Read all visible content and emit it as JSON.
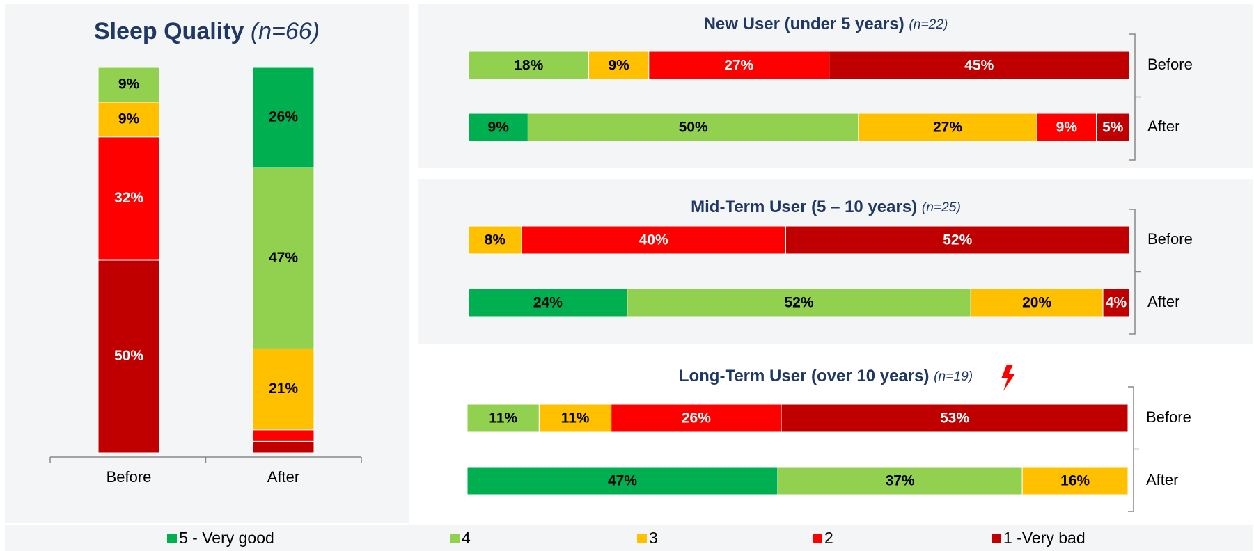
{
  "chart_data": [
    {
      "type": "bar",
      "orientation": "vertical",
      "stacked": true,
      "title": "Sleep Quality",
      "subtitle": "(n=66)",
      "categories": [
        "Before",
        "After"
      ],
      "series": [
        {
          "name": "5 - Very good",
          "color": "#00b050",
          "label_color": "#000000",
          "values": [
            null,
            26
          ],
          "value_labels": [
            null,
            "26%"
          ]
        },
        {
          "name": "4",
          "color": "#92d050",
          "label_color": "#000000",
          "values": [
            9,
            47
          ],
          "value_labels": [
            "9%",
            "47%"
          ]
        },
        {
          "name": "3",
          "color": "#ffc000",
          "label_color": "#000000",
          "values": [
            9,
            21
          ],
          "value_labels": [
            "9%",
            "21%"
          ]
        },
        {
          "name": "2",
          "color": "#ff0000",
          "label_color": "#ffffff",
          "values": [
            32,
            3
          ],
          "value_labels": [
            "32%",
            null
          ]
        },
        {
          "name": "1 -Very bad",
          "color": "#c00000",
          "label_color": "#ffffff",
          "values": [
            50,
            3
          ],
          "value_labels": [
            "50%",
            null
          ]
        }
      ]
    },
    {
      "type": "bar",
      "orientation": "horizontal",
      "stacked": true,
      "title": "New User (under 5 years)",
      "subtitle": "(n=22)",
      "categories": [
        "Before",
        "After"
      ],
      "series": [
        {
          "name": "5 - Very good",
          "color": "#00b050",
          "label_color": "#000000",
          "values": [
            null,
            9
          ],
          "value_labels": [
            null,
            "9%"
          ]
        },
        {
          "name": "4",
          "color": "#92d050",
          "label_color": "#000000",
          "values": [
            18,
            50
          ],
          "value_labels": [
            "18%",
            "50%"
          ]
        },
        {
          "name": "3",
          "color": "#ffc000",
          "label_color": "#000000",
          "values": [
            9,
            27
          ],
          "value_labels": [
            "9%",
            "27%"
          ]
        },
        {
          "name": "2",
          "color": "#ff0000",
          "label_color": "#ffffff",
          "values": [
            27,
            9
          ],
          "value_labels": [
            "27%",
            "9%"
          ]
        },
        {
          "name": "1 -Very bad",
          "color": "#c00000",
          "label_color": "#ffffff",
          "values": [
            45,
            5
          ],
          "value_labels": [
            "45%",
            "5%"
          ]
        }
      ]
    },
    {
      "type": "bar",
      "orientation": "horizontal",
      "stacked": true,
      "title": "Mid-Term User (5 – 10 years)",
      "subtitle": "(n=25)",
      "categories": [
        "Before",
        "After"
      ],
      "series": [
        {
          "name": "5 - Very good",
          "color": "#00b050",
          "label_color": "#000000",
          "values": [
            null,
            24
          ],
          "value_labels": [
            null,
            "24%"
          ]
        },
        {
          "name": "4",
          "color": "#92d050",
          "label_color": "#000000",
          "values": [
            null,
            52
          ],
          "value_labels": [
            null,
            "52%"
          ]
        },
        {
          "name": "3",
          "color": "#ffc000",
          "label_color": "#000000",
          "values": [
            8,
            20
          ],
          "value_labels": [
            "8%",
            "20%"
          ]
        },
        {
          "name": "2",
          "color": "#ff0000",
          "label_color": "#ffffff",
          "values": [
            40,
            null
          ],
          "value_labels": [
            "40%",
            null
          ]
        },
        {
          "name": "1 -Very bad",
          "color": "#c00000",
          "label_color": "#ffffff",
          "values": [
            52,
            4
          ],
          "value_labels": [
            "52%",
            "4%"
          ]
        }
      ]
    },
    {
      "type": "bar",
      "orientation": "horizontal",
      "stacked": true,
      "title": "Long-Term User (over 10 years)",
      "subtitle": "(n=19)",
      "categories": [
        "Before",
        "After"
      ],
      "series": [
        {
          "name": "5 - Very good",
          "color": "#00b050",
          "label_color": "#000000",
          "values": [
            null,
            47
          ],
          "value_labels": [
            null,
            "47%"
          ]
        },
        {
          "name": "4",
          "color": "#92d050",
          "label_color": "#000000",
          "values": [
            11,
            37
          ],
          "value_labels": [
            "11%",
            "37%"
          ]
        },
        {
          "name": "3",
          "color": "#ffc000",
          "label_color": "#000000",
          "values": [
            11,
            16
          ],
          "value_labels": [
            "11%",
            "16%"
          ]
        },
        {
          "name": "2",
          "color": "#ff0000",
          "label_color": "#ffffff",
          "values": [
            26,
            null
          ],
          "value_labels": [
            "26%",
            null
          ]
        },
        {
          "name": "1 -Very bad",
          "color": "#c00000",
          "label_color": "#ffffff",
          "values": [
            53,
            null
          ],
          "value_labels": [
            "53%",
            null
          ]
        }
      ]
    }
  ]
}
